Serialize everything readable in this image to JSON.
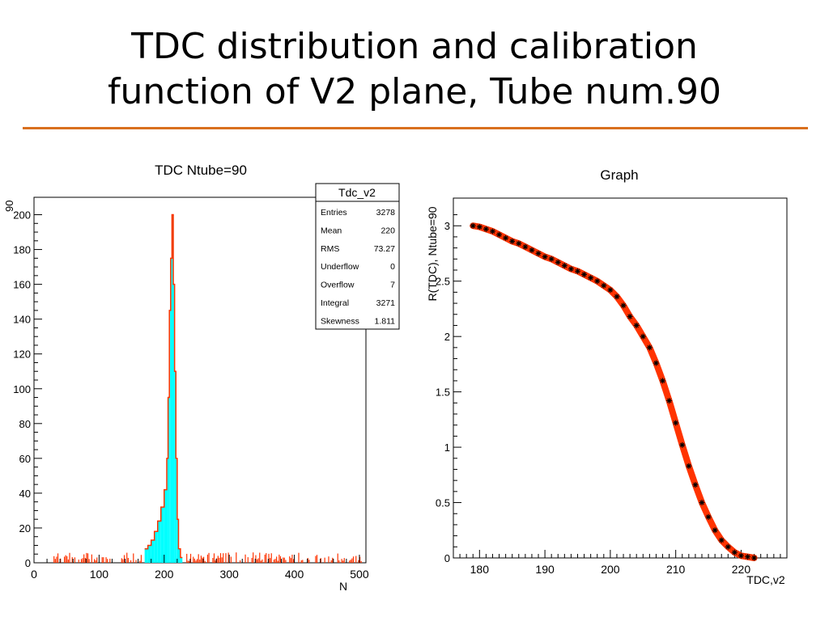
{
  "slide": {
    "title_line1": "TDC distribution and calibration",
    "title_line2": "function of V2 plane, Tube num.90",
    "accent_color": "#d9701e"
  },
  "chart_data": [
    {
      "type": "histogram",
      "title": "TDC Ntube=90",
      "xlabel": "N",
      "ylabel": "",
      "xlim": [
        0,
        510
      ],
      "ylim": [
        0,
        210
      ],
      "xticks": [
        0,
        100,
        200,
        300,
        400,
        500
      ],
      "yticks": [
        0,
        20,
        40,
        60,
        80,
        100,
        120,
        140,
        160,
        180,
        200
      ],
      "y_axis_top_label": "90",
      "colors": {
        "fill": "#00ffff",
        "line": "#ff3300",
        "frame": "#000000"
      },
      "peak_bins": [
        {
          "x": 170,
          "y": 8
        },
        {
          "x": 175,
          "y": 10
        },
        {
          "x": 180,
          "y": 13
        },
        {
          "x": 185,
          "y": 18
        },
        {
          "x": 190,
          "y": 24
        },
        {
          "x": 195,
          "y": 32
        },
        {
          "x": 200,
          "y": 42
        },
        {
          "x": 204,
          "y": 60
        },
        {
          "x": 206,
          "y": 95
        },
        {
          "x": 208,
          "y": 145
        },
        {
          "x": 210,
          "y": 175
        },
        {
          "x": 212,
          "y": 200
        },
        {
          "x": 214,
          "y": 160
        },
        {
          "x": 216,
          "y": 110
        },
        {
          "x": 218,
          "y": 60
        },
        {
          "x": 220,
          "y": 25
        },
        {
          "x": 222,
          "y": 8
        },
        {
          "x": 225,
          "y": 3
        }
      ],
      "background_level": 2,
      "stats": {
        "name": "Tdc_v2",
        "rows": [
          {
            "label": "Entries",
            "value": "3278"
          },
          {
            "label": "Mean",
            "value": "220"
          },
          {
            "label": "RMS",
            "value": "73.27"
          },
          {
            "label": "Underflow",
            "value": "0"
          },
          {
            "label": "Overflow",
            "value": "7"
          },
          {
            "label": "Integral",
            "value": "3271"
          },
          {
            "label": "Skewness",
            "value": "1.811"
          }
        ]
      }
    },
    {
      "type": "line",
      "title": "Graph",
      "xlabel": "TDC,v2",
      "ylabel": "R(TDC), Ntube=90",
      "xlim": [
        176,
        227
      ],
      "ylim": [
        0,
        3.25
      ],
      "xticks": [
        180,
        190,
        200,
        210,
        220
      ],
      "yticks": [
        0,
        0.5,
        1,
        1.5,
        2,
        2.5,
        3
      ],
      "ytick_labels": [
        "0",
        "0.5",
        "1",
        "1.5",
        "2",
        "2.5",
        "3"
      ],
      "colors": {
        "line": "#ff3300",
        "marker": "#000000"
      },
      "marker": "asterisk",
      "points": [
        {
          "x": 179,
          "y": 3.0
        },
        {
          "x": 180,
          "y": 2.99
        },
        {
          "x": 181,
          "y": 2.97
        },
        {
          "x": 182,
          "y": 2.95
        },
        {
          "x": 183,
          "y": 2.92
        },
        {
          "x": 184,
          "y": 2.89
        },
        {
          "x": 185,
          "y": 2.86
        },
        {
          "x": 186,
          "y": 2.84
        },
        {
          "x": 187,
          "y": 2.81
        },
        {
          "x": 188,
          "y": 2.78
        },
        {
          "x": 189,
          "y": 2.75
        },
        {
          "x": 190,
          "y": 2.72
        },
        {
          "x": 191,
          "y": 2.7
        },
        {
          "x": 192,
          "y": 2.67
        },
        {
          "x": 193,
          "y": 2.64
        },
        {
          "x": 194,
          "y": 2.61
        },
        {
          "x": 195,
          "y": 2.59
        },
        {
          "x": 196,
          "y": 2.56
        },
        {
          "x": 197,
          "y": 2.53
        },
        {
          "x": 198,
          "y": 2.5
        },
        {
          "x": 199,
          "y": 2.46
        },
        {
          "x": 200,
          "y": 2.42
        },
        {
          "x": 201,
          "y": 2.36
        },
        {
          "x": 202,
          "y": 2.28
        },
        {
          "x": 203,
          "y": 2.18
        },
        {
          "x": 204,
          "y": 2.1
        },
        {
          "x": 205,
          "y": 2.0
        },
        {
          "x": 206,
          "y": 1.9
        },
        {
          "x": 207,
          "y": 1.76
        },
        {
          "x": 208,
          "y": 1.6
        },
        {
          "x": 209,
          "y": 1.42
        },
        {
          "x": 210,
          "y": 1.22
        },
        {
          "x": 211,
          "y": 1.02
        },
        {
          "x": 212,
          "y": 0.83
        },
        {
          "x": 213,
          "y": 0.66
        },
        {
          "x": 214,
          "y": 0.5
        },
        {
          "x": 215,
          "y": 0.37
        },
        {
          "x": 216,
          "y": 0.25
        },
        {
          "x": 217,
          "y": 0.16
        },
        {
          "x": 218,
          "y": 0.1
        },
        {
          "x": 219,
          "y": 0.05
        },
        {
          "x": 220,
          "y": 0.02
        },
        {
          "x": 221,
          "y": 0.01
        },
        {
          "x": 222,
          "y": 0.0
        }
      ]
    }
  ]
}
